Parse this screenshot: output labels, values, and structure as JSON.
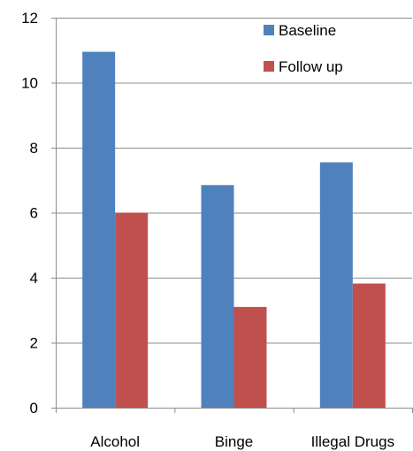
{
  "chart_data": {
    "type": "bar",
    "categories": [
      "Alcohol",
      "Binge",
      "Illegal Drugs"
    ],
    "series": [
      {
        "name": "Baseline",
        "values": [
          10.95,
          6.85,
          7.55
        ],
        "color": "#4f81bd"
      },
      {
        "name": "Follow up",
        "values": [
          6.0,
          3.1,
          3.82
        ],
        "color": "#c0504d"
      }
    ],
    "title": "",
    "xlabel": "",
    "ylabel": "",
    "ylim": [
      0,
      12
    ],
    "yticks": [
      0,
      2,
      4,
      6,
      8,
      10,
      12
    ],
    "ytick_labels": [
      "0",
      "2",
      "4",
      "6",
      "8",
      "10",
      "12"
    ],
    "grid": true,
    "legend_position": "top-right",
    "gridline_color": "#8c8c8c",
    "axis_color": "#8c8c8c"
  }
}
